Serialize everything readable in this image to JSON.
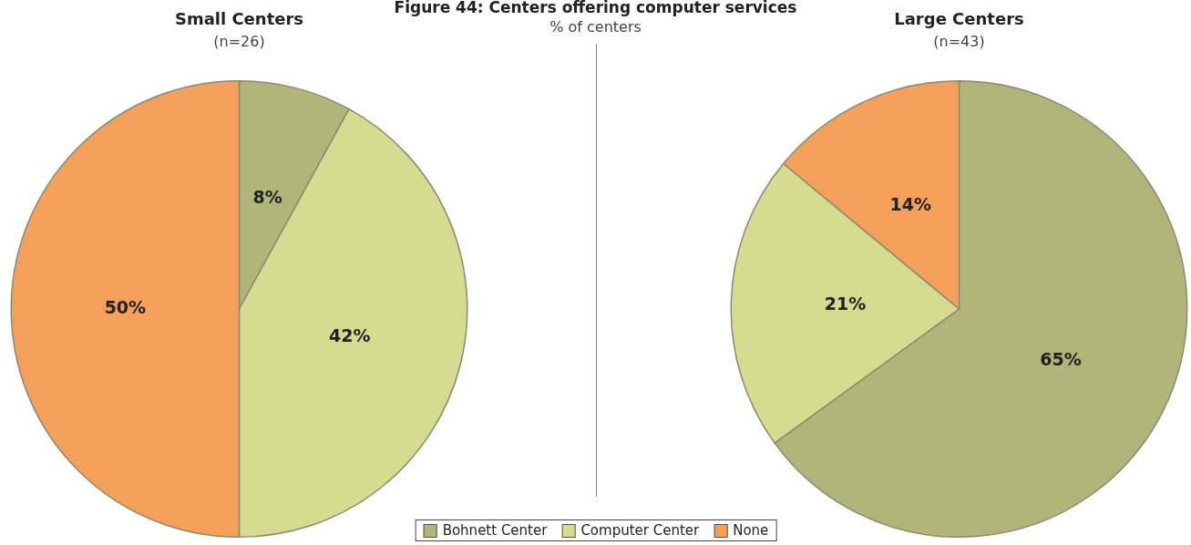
{
  "chart_data": [
    {
      "type": "pie",
      "title": "Small Centers",
      "subtitle": "(n=26)",
      "categories": [
        "Bohnett Center",
        "Computer Center",
        "None"
      ],
      "values": [
        8,
        42,
        50
      ],
      "value_labels": [
        "8%",
        "42%",
        "50%"
      ],
      "colors": [
        "#b1b57a",
        "#d5dc8f",
        "#f5a05a"
      ],
      "legend": "bottom",
      "annotations": [
        "Figure 44: Centers offering computer services",
        "% of centers"
      ]
    },
    {
      "type": "pie",
      "title": "Large Centers",
      "subtitle": "(n=43)",
      "categories": [
        null,
        null,
        null
      ],
      "values": [
        65,
        21,
        14
      ],
      "value_labels": [
        "65%",
        "21%",
        "14%"
      ],
      "colors": [
        "#b1b57a",
        "#d5dc8f",
        "#f5a05a"
      ]
    }
  ]
}
